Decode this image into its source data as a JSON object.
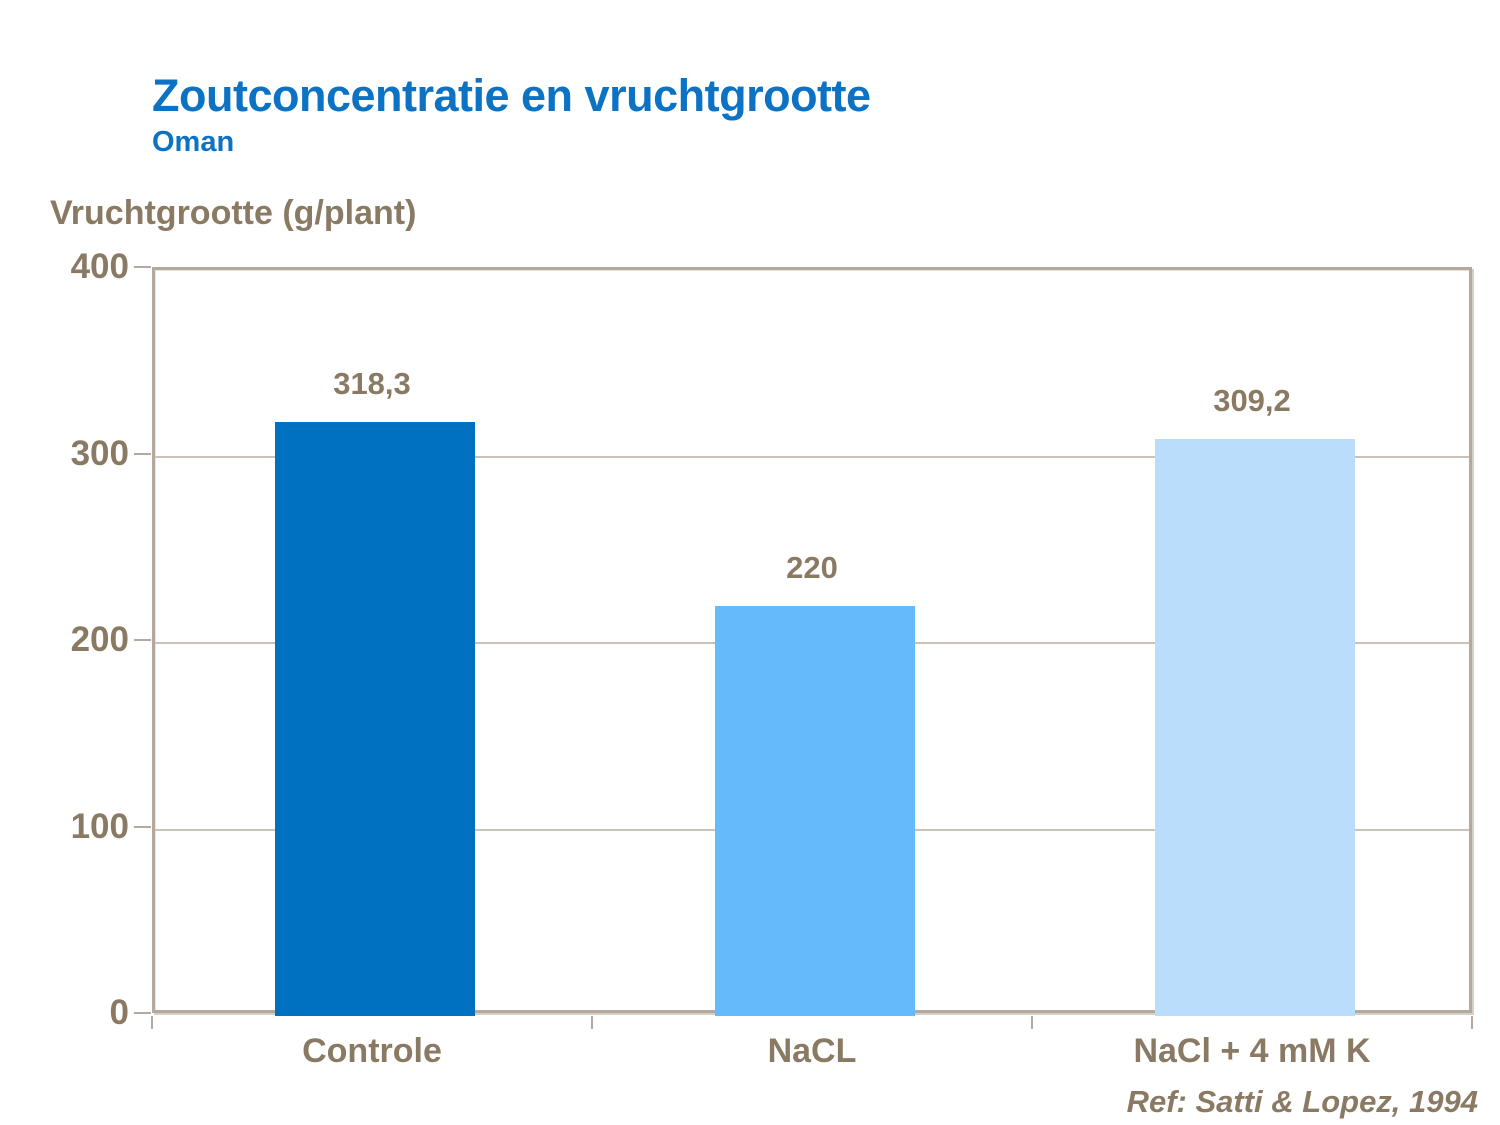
{
  "header": {
    "title": "Zoutconcentratie en vruchtgrootte",
    "subtitle": "Oman"
  },
  "footer": {
    "reference": "Ref: Satti & Lopez, 1994"
  },
  "colors": {
    "title_blue": "#0b72c4",
    "text_brown": "#8a7a64",
    "axis_line": "#b3a99e",
    "gridline": "#cbc2b8",
    "background": "#ffffff"
  },
  "chart_data": {
    "type": "bar",
    "title": "Zoutconcentratie en vruchtgrootte",
    "subtitle": "Oman",
    "ylabel": "Vruchtgrootte (g/plant)",
    "xlabel": "",
    "categories": [
      "Controle",
      "NaCL",
      "NaCl + 4 mM K"
    ],
    "values": [
      318.3,
      220,
      309.2
    ],
    "value_labels": [
      "318,3",
      "220",
      "309,2"
    ],
    "bar_colors": [
      "#0070c0",
      "#65bafb",
      "#b9ddfb"
    ],
    "ylim": [
      0,
      400
    ],
    "yticks": [
      0,
      100,
      200,
      300,
      400
    ],
    "grid": "horizontal",
    "legend": "none",
    "annotation": "Ref: Satti & Lopez, 1994"
  }
}
